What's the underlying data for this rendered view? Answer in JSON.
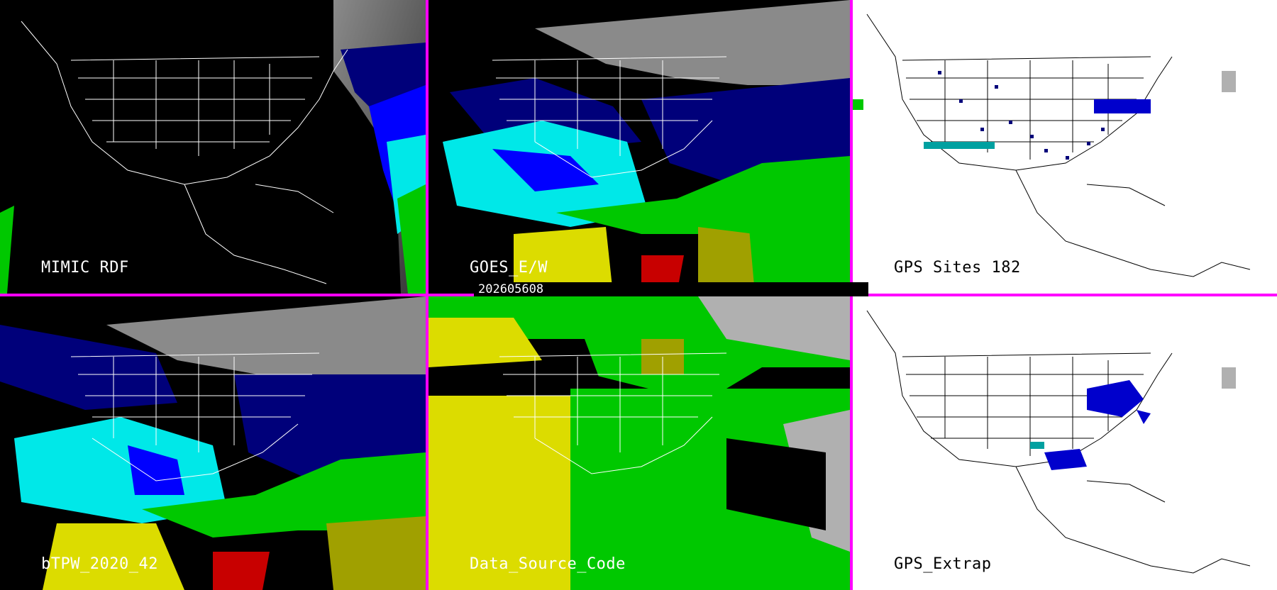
{
  "panels": [
    {
      "id": "mimic",
      "label": "MIMIC RDF",
      "background": "dark"
    },
    {
      "id": "goes",
      "label": "GOES_E/W",
      "background": "dark"
    },
    {
      "id": "gps_sites",
      "label": "GPS Sites    182",
      "background": "light"
    },
    {
      "id": "btpw",
      "label": "bTPW_2020_42",
      "background": "dark"
    },
    {
      "id": "data_source",
      "label": "Data_Source_Code",
      "background": "dark"
    },
    {
      "id": "gps_extrap",
      "label": "GPS_Extrap",
      "background": "light"
    }
  ],
  "timestamp": "202605608",
  "colors": {
    "divider": "#ff00ff",
    "low": "#2a2a2a",
    "cloud_gray": "#b0b0b0",
    "navy": "#00007a",
    "blue": "#0000ff",
    "cyan": "#00e8e8",
    "light_cyan": "#8ff0ff",
    "green": "#00c800",
    "yellow": "#dcdc00",
    "olive": "#a0a000",
    "red": "#c80000"
  }
}
